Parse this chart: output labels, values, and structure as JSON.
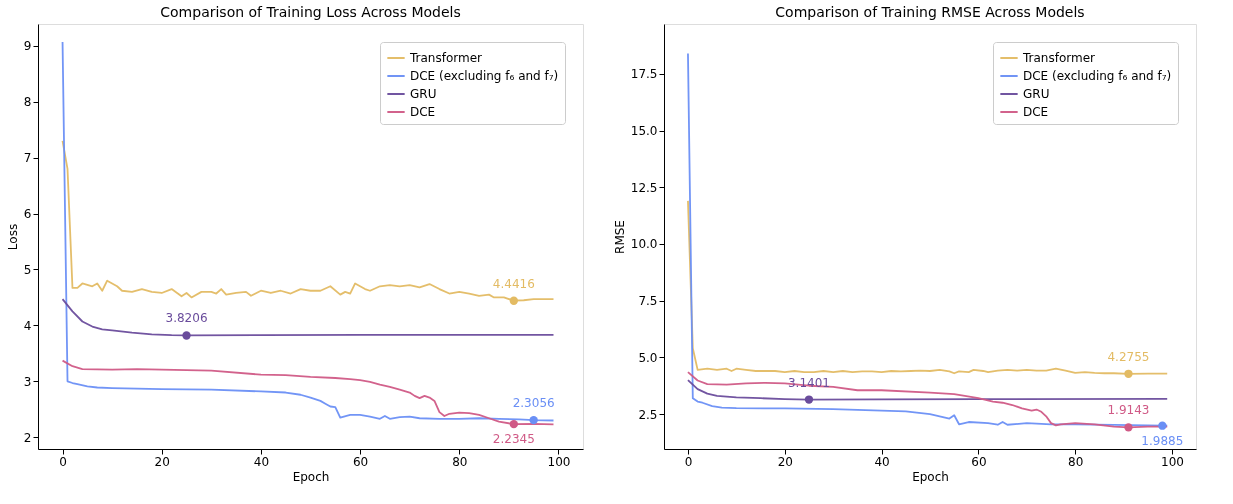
{
  "chart_data": [
    {
      "type": "line",
      "title": "Comparison of Training Loss Across Models",
      "xlabel": "Epoch",
      "ylabel": "Loss",
      "xlim": [
        -4.95,
        104.95
      ],
      "ylim": [
        1.79,
        9.39
      ],
      "xticks": [
        0,
        20,
        40,
        60,
        80,
        100
      ],
      "yticks": [
        2,
        3,
        4,
        5,
        6,
        7,
        8,
        9
      ],
      "grid": false,
      "legend": "top right",
      "line_style": "solid",
      "series": [
        {
          "name": "Transformer",
          "color": "#e3bb63",
          "x": [
            0,
            1,
            2,
            3,
            4,
            6,
            7,
            8,
            9,
            11,
            12,
            14,
            16,
            18,
            20,
            22,
            24,
            25,
            26,
            28,
            30,
            31,
            32,
            33,
            35,
            37,
            38,
            40,
            42,
            44,
            46,
            48,
            50,
            52,
            54,
            56,
            57,
            58,
            59,
            61,
            62,
            64,
            66,
            68,
            70,
            72,
            74,
            76,
            78,
            80,
            82,
            84,
            86,
            87,
            89,
            91,
            93,
            95,
            97,
            99
          ],
          "values": [
            7.3,
            6.8,
            4.67,
            4.67,
            4.75,
            4.7,
            4.75,
            4.62,
            4.8,
            4.7,
            4.62,
            4.6,
            4.65,
            4.6,
            4.58,
            4.65,
            4.52,
            4.58,
            4.5,
            4.6,
            4.6,
            4.57,
            4.65,
            4.55,
            4.58,
            4.6,
            4.53,
            4.62,
            4.58,
            4.62,
            4.57,
            4.65,
            4.62,
            4.62,
            4.7,
            4.55,
            4.6,
            4.57,
            4.75,
            4.65,
            4.62,
            4.7,
            4.72,
            4.7,
            4.72,
            4.68,
            4.74,
            4.65,
            4.57,
            4.6,
            4.57,
            4.53,
            4.55,
            4.5,
            4.5,
            4.4416,
            4.45,
            4.47,
            4.47,
            4.47
          ]
        },
        {
          "name": "DCE (excluding f₆ and f₇)",
          "color": "#6a8ff5",
          "x": [
            0,
            1,
            2,
            3,
            5,
            7,
            10,
            20,
            30,
            40,
            45,
            48,
            50,
            52,
            53,
            54,
            55,
            56,
            58,
            60,
            62,
            64,
            65,
            66,
            68,
            70,
            72,
            76,
            80,
            84,
            88,
            92,
            95,
            99
          ],
          "values": [
            9.07,
            3.0,
            2.97,
            2.95,
            2.91,
            2.89,
            2.88,
            2.86,
            2.85,
            2.82,
            2.8,
            2.76,
            2.71,
            2.65,
            2.6,
            2.55,
            2.54,
            2.35,
            2.4,
            2.4,
            2.37,
            2.33,
            2.38,
            2.33,
            2.36,
            2.37,
            2.34,
            2.33,
            2.33,
            2.34,
            2.33,
            2.32,
            2.3056,
            2.3
          ]
        },
        {
          "name": "GRU",
          "color": "#6a4c9c",
          "x": [
            0,
            2,
            4,
            6,
            8,
            10,
            14,
            18,
            22,
            25,
            40,
            60,
            99
          ],
          "values": [
            4.47,
            4.25,
            4.07,
            3.98,
            3.93,
            3.91,
            3.87,
            3.84,
            3.825,
            3.8206,
            3.825,
            3.83,
            3.83
          ]
        },
        {
          "name": "DCE",
          "color": "#d05a86",
          "x": [
            0,
            2,
            4,
            10,
            15,
            20,
            30,
            40,
            45,
            50,
            55,
            58,
            60,
            62,
            64,
            66,
            68,
            70,
            71,
            72,
            73,
            74,
            75,
            76,
            77,
            78,
            80,
            82,
            84,
            86,
            88,
            91,
            95,
            99
          ],
          "values": [
            3.37,
            3.27,
            3.22,
            3.21,
            3.22,
            3.21,
            3.19,
            3.12,
            3.11,
            3.08,
            3.06,
            3.04,
            3.02,
            2.99,
            2.94,
            2.9,
            2.85,
            2.8,
            2.74,
            2.7,
            2.74,
            2.71,
            2.65,
            2.45,
            2.38,
            2.42,
            2.44,
            2.43,
            2.4,
            2.34,
            2.28,
            2.2345,
            2.24,
            2.23
          ]
        },
        {
          "type": "scatter",
          "marker": "circle",
          "x": [
            91,
            25,
            95,
            91
          ],
          "values": [
            4.4416,
            3.8206,
            2.3056,
            2.2345
          ],
          "colors": [
            "#e3bb63",
            "#6a4c9c",
            "#6a8ff5",
            "#d05a86"
          ],
          "value_labels": [
            "4.4416",
            "3.8206",
            "2.3056",
            "2.2345"
          ]
        }
      ]
    },
    {
      "type": "line",
      "title": "Comparison of Training RMSE Across Models",
      "xlabel": "Epoch",
      "ylabel": "RMSE",
      "xlim": [
        -4.95,
        104.95
      ],
      "ylim": [
        0.96,
        19.7
      ],
      "xticks": [
        0,
        20,
        40,
        60,
        80,
        100
      ],
      "yticks": [
        2.5,
        {
          "value": 5,
          "label": "5.0"
        },
        7.5,
        {
          "value": 10,
          "label": "10.0"
        },
        12.5,
        {
          "value": 15,
          "label": "15.0"
        },
        17.5
      ],
      "grid": false,
      "legend": "top right",
      "line_style": "solid",
      "series": [
        {
          "name": "Transformer",
          "color": "#e3bb63",
          "x": [
            0,
            1,
            2,
            4,
            6,
            8,
            9,
            10,
            12,
            14,
            16,
            18,
            20,
            22,
            24,
            26,
            28,
            30,
            32,
            34,
            36,
            38,
            40,
            42,
            44,
            46,
            48,
            50,
            52,
            54,
            55,
            56,
            58,
            59,
            61,
            62,
            64,
            66,
            68,
            70,
            72,
            74,
            76,
            78,
            80,
            82,
            84,
            86,
            88,
            91,
            95,
            99
          ],
          "values": [
            11.9,
            5.4,
            4.45,
            4.5,
            4.45,
            4.5,
            4.4,
            4.5,
            4.45,
            4.4,
            4.4,
            4.4,
            4.35,
            4.4,
            4.35,
            4.35,
            4.4,
            4.35,
            4.4,
            4.35,
            4.38,
            4.38,
            4.35,
            4.4,
            4.38,
            4.4,
            4.42,
            4.4,
            4.45,
            4.38,
            4.3,
            4.38,
            4.35,
            4.45,
            4.4,
            4.35,
            4.42,
            4.45,
            4.42,
            4.45,
            4.42,
            4.42,
            4.5,
            4.42,
            4.32,
            4.35,
            4.32,
            4.3,
            4.3,
            4.2755,
            4.28,
            4.28
          ]
        },
        {
          "name": "DCE (excluding f₆ and f₇)",
          "color": "#6a8ff5",
          "x": [
            0,
            1,
            2,
            3,
            5,
            7,
            10,
            20,
            30,
            40,
            45,
            50,
            52,
            54,
            55,
            56,
            58,
            62,
            64,
            65,
            66,
            70,
            75,
            80,
            88,
            95,
            98,
            99
          ],
          "values": [
            18.4,
            3.2,
            3.05,
            3.0,
            2.85,
            2.78,
            2.76,
            2.75,
            2.72,
            2.65,
            2.62,
            2.5,
            2.4,
            2.3,
            2.45,
            2.05,
            2.15,
            2.1,
            2.03,
            2.15,
            2.03,
            2.1,
            2.05,
            2.05,
            2.02,
            2.0,
            1.9885,
            1.99
          ]
        },
        {
          "name": "GRU",
          "color": "#6a4c9c",
          "x": [
            0,
            2,
            4,
            6,
            10,
            15,
            20,
            25,
            40,
            60,
            99
          ],
          "values": [
            4.0,
            3.6,
            3.4,
            3.3,
            3.24,
            3.2,
            3.16,
            3.1401,
            3.15,
            3.16,
            3.17
          ]
        },
        {
          "name": "DCE",
          "color": "#d05a86",
          "x": [
            0,
            2,
            4,
            8,
            12,
            16,
            20,
            25,
            30,
            35,
            40,
            50,
            55,
            60,
            63,
            65,
            67,
            69,
            71,
            72,
            73,
            74,
            75,
            76,
            77,
            80,
            84,
            88,
            91,
            95,
            99
          ],
          "values": [
            4.35,
            3.98,
            3.82,
            3.8,
            3.85,
            3.88,
            3.85,
            3.75,
            3.7,
            3.55,
            3.55,
            3.45,
            3.38,
            3.2,
            3.05,
            3.0,
            2.9,
            2.75,
            2.65,
            2.7,
            2.6,
            2.4,
            2.1,
            2.0,
            2.05,
            2.1,
            2.05,
            1.95,
            1.9143,
            1.95,
            1.95
          ]
        },
        {
          "type": "scatter",
          "marker": "circle",
          "x": [
            91,
            25,
            91,
            98
          ],
          "values": [
            4.2755,
            3.1401,
            1.9143,
            1.9885
          ],
          "colors": [
            "#e3bb63",
            "#6a4c9c",
            "#d05a86",
            "#6a8ff5"
          ],
          "value_labels": [
            "4.2755",
            "3.1401",
            "1.9143",
            "1.9885"
          ]
        }
      ]
    }
  ]
}
